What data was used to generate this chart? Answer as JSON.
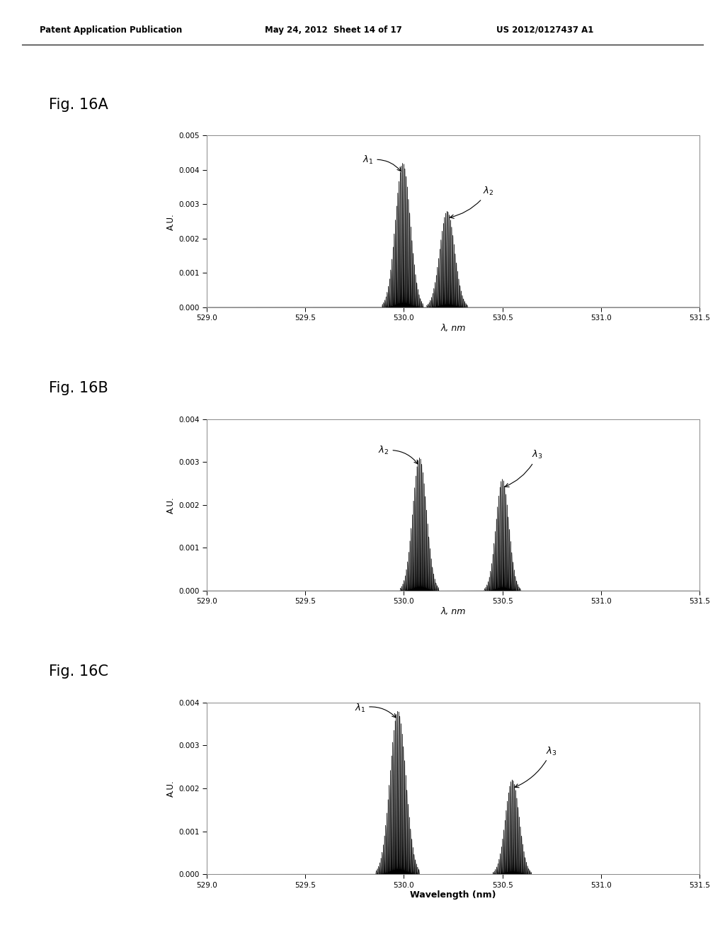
{
  "header_left": "Patent Application Publication",
  "header_mid": "May 24, 2012  Sheet 14 of 17",
  "header_right": "US 2012/0127437 A1",
  "fig_labels": [
    "Fig. 16A",
    "Fig. 16B",
    "Fig. 16C"
  ],
  "xlabel_ab": "λ, nm",
  "xlabel_c": "Wavelength (nm)",
  "ylabel": "A.U.",
  "xlim": [
    529.0,
    531.5
  ],
  "xticks": [
    529.0,
    529.5,
    530.0,
    530.5,
    531.0,
    531.5
  ],
  "figA_ylim": [
    0.0,
    0.005
  ],
  "figA_yticks": [
    0.0,
    0.001,
    0.002,
    0.003,
    0.004,
    0.005
  ],
  "figBC_ylim": [
    0.0,
    0.004
  ],
  "figBC_yticks": [
    0.0,
    0.001,
    0.002,
    0.003,
    0.004
  ],
  "bg_color": "#ffffff",
  "plot_bg": "#ffffff",
  "line_color": "#000000"
}
